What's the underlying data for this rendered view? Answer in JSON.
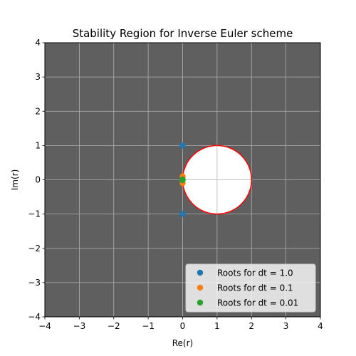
{
  "chart_data": {
    "type": "scatter",
    "title": "Stability Region for Inverse Euler scheme",
    "xlabel": "Re(r)",
    "ylabel": "Im(r)",
    "xlim": [
      -4,
      4
    ],
    "ylim": [
      -4,
      4
    ],
    "xticks": [
      "−4",
      "−3",
      "−2",
      "−1",
      "0",
      "1",
      "2",
      "3",
      "4"
    ],
    "yticks": [
      "−4",
      "−3",
      "−2",
      "−1",
      "0",
      "1",
      "2",
      "3",
      "4"
    ],
    "grid": true,
    "background_color": "#5f5f5f",
    "stability_region": {
      "shape": "circle",
      "center": [
        1,
        0
      ],
      "radius": 1,
      "fill_color": "#ffffff",
      "edge_color": "#ff0000"
    },
    "series": [
      {
        "name": "Roots for dt = 1.0",
        "color": "#1f77b4",
        "x": [
          0,
          0
        ],
        "y": [
          1,
          -1
        ]
      },
      {
        "name": "Roots for dt = 0.1",
        "color": "#ff7f0e",
        "x": [
          0,
          0
        ],
        "y": [
          0.1,
          -0.1
        ]
      },
      {
        "name": "Roots for dt = 0.01",
        "color": "#2ca02c",
        "x": [
          0,
          0
        ],
        "y": [
          0.01,
          -0.01
        ]
      }
    ],
    "legend_position": "lower-right"
  }
}
